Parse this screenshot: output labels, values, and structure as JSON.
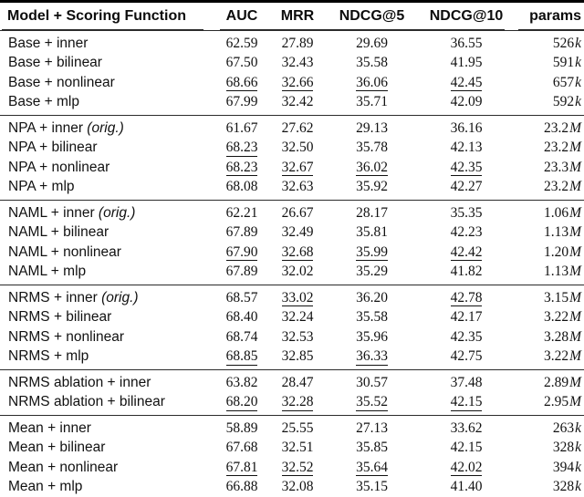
{
  "colors": {
    "text": "#111111",
    "rule_heavy": "#000000",
    "rule_light": "#2b2b2b",
    "background": "#ffffff"
  },
  "table": {
    "columns": [
      "Model + Scoring Function",
      "AUC",
      "MRR",
      "NDCG@5",
      "NDCG@10",
      "params"
    ],
    "sections": [
      {
        "name": "base",
        "rows": [
          {
            "label": "Base + inner",
            "suffix": "",
            "auc": "62.59",
            "mrr": "27.89",
            "ndcg5": "29.69",
            "ndcg10": "36.55",
            "params_value": "526",
            "params_unit": "k",
            "underline": []
          },
          {
            "label": "Base + bilinear",
            "suffix": "",
            "auc": "67.50",
            "mrr": "32.43",
            "ndcg5": "35.58",
            "ndcg10": "41.95",
            "params_value": "591",
            "params_unit": "k",
            "underline": []
          },
          {
            "label": "Base + nonlinear",
            "suffix": "",
            "auc": "68.66",
            "mrr": "32.66",
            "ndcg5": "36.06",
            "ndcg10": "42.45",
            "params_value": "657",
            "params_unit": "k",
            "underline": [
              "auc",
              "mrr",
              "ndcg5",
              "ndcg10"
            ]
          },
          {
            "label": "Base + mlp",
            "suffix": "",
            "auc": "67.99",
            "mrr": "32.42",
            "ndcg5": "35.71",
            "ndcg10": "42.09",
            "params_value": "592",
            "params_unit": "k",
            "underline": []
          }
        ]
      },
      {
        "name": "npa",
        "rows": [
          {
            "label": "NPA + inner",
            "suffix": "(orig.)",
            "auc": "61.67",
            "mrr": "27.62",
            "ndcg5": "29.13",
            "ndcg10": "36.16",
            "params_value": "23.2",
            "params_unit": "M",
            "underline": []
          },
          {
            "label": "NPA + bilinear",
            "suffix": "",
            "auc": "68.23",
            "mrr": "32.50",
            "ndcg5": "35.78",
            "ndcg10": "42.13",
            "params_value": "23.2",
            "params_unit": "M",
            "underline": [
              "auc"
            ]
          },
          {
            "label": "NPA + nonlinear",
            "suffix": "",
            "auc": "68.23",
            "mrr": "32.67",
            "ndcg5": "36.02",
            "ndcg10": "42.35",
            "params_value": "23.3",
            "params_unit": "M",
            "underline": [
              "auc",
              "mrr",
              "ndcg5",
              "ndcg10"
            ]
          },
          {
            "label": "NPA + mlp",
            "suffix": "",
            "auc": "68.08",
            "mrr": "32.63",
            "ndcg5": "35.92",
            "ndcg10": "42.27",
            "params_value": "23.2",
            "params_unit": "M",
            "underline": []
          }
        ]
      },
      {
        "name": "naml",
        "rows": [
          {
            "label": "NAML + inner",
            "suffix": "(orig.)",
            "auc": "62.21",
            "mrr": "26.67",
            "ndcg5": "28.17",
            "ndcg10": "35.35",
            "params_value": "1.06",
            "params_unit": "M",
            "underline": []
          },
          {
            "label": "NAML + bilinear",
            "suffix": "",
            "auc": "67.89",
            "mrr": "32.49",
            "ndcg5": "35.81",
            "ndcg10": "42.23",
            "params_value": "1.13",
            "params_unit": "M",
            "underline": []
          },
          {
            "label": "NAML + nonlinear",
            "suffix": "",
            "auc": "67.90",
            "mrr": "32.68",
            "ndcg5": "35.99",
            "ndcg10": "42.42",
            "params_value": "1.20",
            "params_unit": "M",
            "underline": [
              "auc",
              "mrr",
              "ndcg5",
              "ndcg10"
            ]
          },
          {
            "label": "NAML + mlp",
            "suffix": "",
            "auc": "67.89",
            "mrr": "32.02",
            "ndcg5": "35.29",
            "ndcg10": "41.82",
            "params_value": "1.13",
            "params_unit": "M",
            "underline": []
          }
        ]
      },
      {
        "name": "nrms",
        "rows": [
          {
            "label": "NRMS + inner",
            "suffix": "(orig.)",
            "auc": "68.57",
            "mrr": "33.02",
            "ndcg5": "36.20",
            "ndcg10": "42.78",
            "params_value": "3.15",
            "params_unit": "M",
            "underline": [
              "mrr",
              "ndcg10"
            ]
          },
          {
            "label": "NRMS + bilinear",
            "suffix": "",
            "auc": "68.40",
            "mrr": "32.24",
            "ndcg5": "35.58",
            "ndcg10": "42.17",
            "params_value": "3.22",
            "params_unit": "M",
            "underline": []
          },
          {
            "label": "NRMS + nonlinear",
            "suffix": "",
            "auc": "68.74",
            "mrr": "32.53",
            "ndcg5": "35.96",
            "ndcg10": "42.35",
            "params_value": "3.28",
            "params_unit": "M",
            "underline": []
          },
          {
            "label": "NRMS + mlp",
            "suffix": "",
            "auc": "68.85",
            "mrr": "32.85",
            "ndcg5": "36.33",
            "ndcg10": "42.75",
            "params_value": "3.22",
            "params_unit": "M",
            "underline": [
              "auc",
              "ndcg5"
            ]
          }
        ]
      },
      {
        "name": "nrms-ablation",
        "rows": [
          {
            "label": "NRMS ablation + inner",
            "suffix": "",
            "auc": "63.82",
            "mrr": "28.47",
            "ndcg5": "30.57",
            "ndcg10": "37.48",
            "params_value": "2.89",
            "params_unit": "M",
            "underline": []
          },
          {
            "label": "NRMS ablation + bilinear",
            "suffix": "",
            "auc": "68.20",
            "mrr": "32.28",
            "ndcg5": "35.52",
            "ndcg10": "42.15",
            "params_value": "2.95",
            "params_unit": "M",
            "underline": [
              "auc",
              "mrr",
              "ndcg5",
              "ndcg10"
            ]
          }
        ]
      },
      {
        "name": "mean",
        "rows": [
          {
            "label": "Mean + inner",
            "suffix": "",
            "auc": "58.89",
            "mrr": "25.55",
            "ndcg5": "27.13",
            "ndcg10": "33.62",
            "params_value": "263",
            "params_unit": "k",
            "underline": []
          },
          {
            "label": "Mean + bilinear",
            "suffix": "",
            "auc": "67.68",
            "mrr": "32.51",
            "ndcg5": "35.85",
            "ndcg10": "42.15",
            "params_value": "328",
            "params_unit": "k",
            "underline": []
          },
          {
            "label": "Mean + nonlinear",
            "suffix": "",
            "auc": "67.81",
            "mrr": "32.52",
            "ndcg5": "35.64",
            "ndcg10": "42.02",
            "params_value": "394",
            "params_unit": "k",
            "underline": [
              "auc",
              "mrr",
              "ndcg5",
              "ndcg10"
            ]
          },
          {
            "label": "Mean + mlp",
            "suffix": "",
            "auc": "66.88",
            "mrr": "32.08",
            "ndcg5": "35.15",
            "ndcg10": "41.40",
            "params_value": "328",
            "params_unit": "k",
            "underline": []
          }
        ]
      }
    ]
  }
}
